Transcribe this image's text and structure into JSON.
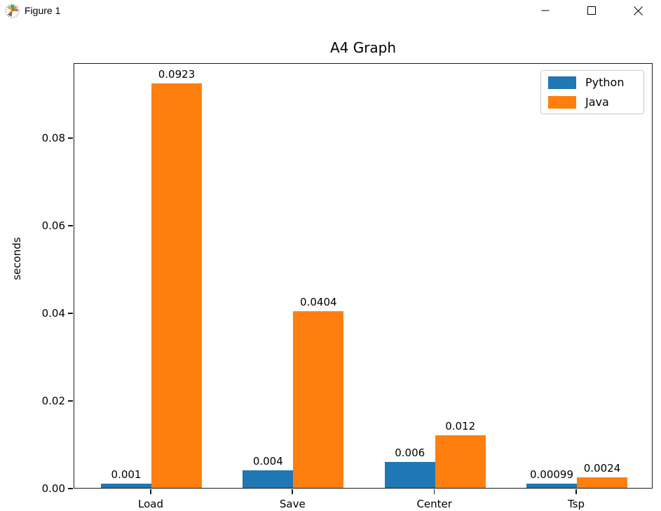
{
  "window": {
    "title": "Figure 1",
    "icon": "matplotlib-logo",
    "controls": [
      {
        "name": "minimize"
      },
      {
        "name": "maximize"
      },
      {
        "name": "close"
      }
    ]
  },
  "chart_data": {
    "type": "bar",
    "title": "A4 Graph",
    "xlabel": "",
    "ylabel": "seconds",
    "categories": [
      "Load",
      "Save",
      "Center",
      "Tsp"
    ],
    "series": [
      {
        "name": "Python",
        "color": "#1f77b4",
        "values": [
          0.001,
          0.004,
          0.006,
          0.00099
        ],
        "bar_labels": [
          "0.001",
          "0.004",
          "0.006",
          "0.00099"
        ]
      },
      {
        "name": "Java",
        "color": "#ff7f0e",
        "values": [
          0.0923,
          0.0404,
          0.012,
          0.0024
        ],
        "bar_labels": [
          "0.0923",
          "0.0404",
          "0.012",
          "0.0024"
        ]
      }
    ],
    "yticks": [
      "0.00",
      "0.02",
      "0.04",
      "0.06",
      "0.08"
    ],
    "ytick_values": [
      0.0,
      0.02,
      0.04,
      0.06,
      0.08
    ],
    "ylim": [
      0,
      0.09712
    ],
    "grid": false,
    "legend_position": "upper right"
  }
}
